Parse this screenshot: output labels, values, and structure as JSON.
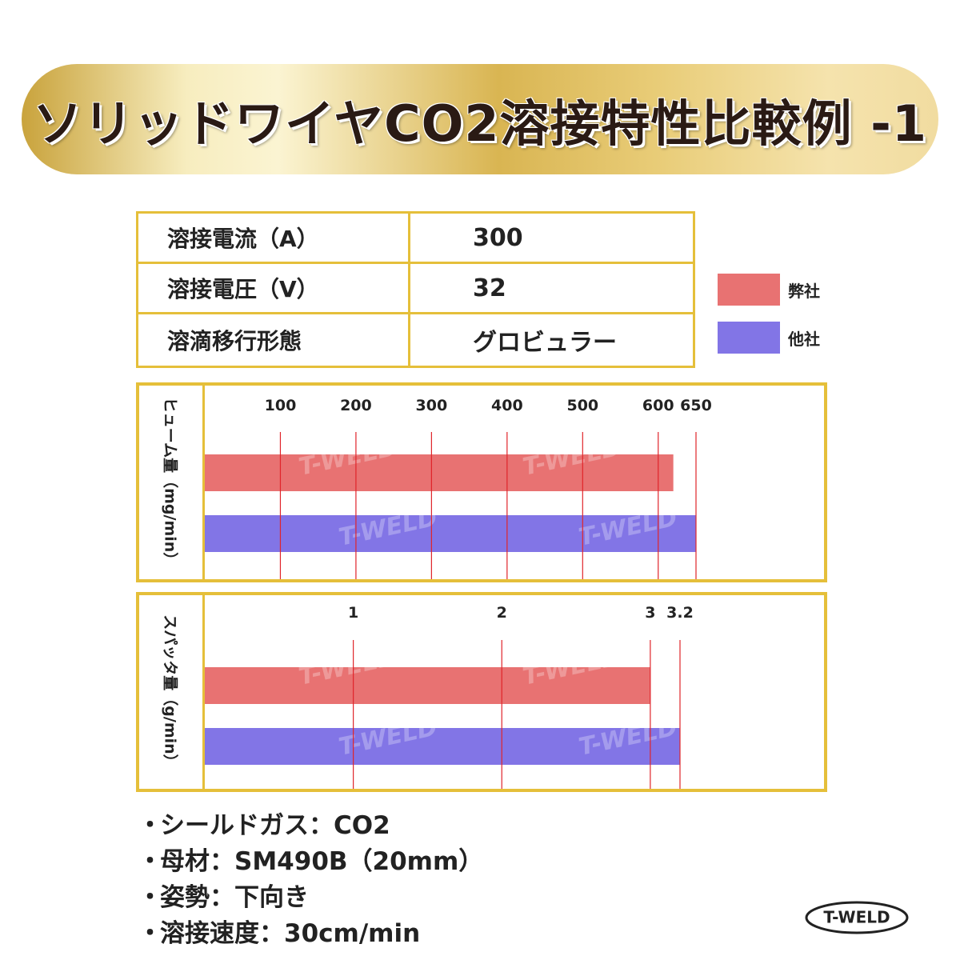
{
  "title": "ソリッドワイヤCO2溶接特性比較例 -1",
  "conditions": [
    {
      "label": "溶接電流（A）",
      "value": "300"
    },
    {
      "label": "溶接電圧（V）",
      "value": "32"
    },
    {
      "label": "溶滴移行形態",
      "value": "グロビュラー"
    }
  ],
  "legend": [
    {
      "label": "弊社",
      "color": "#e87272"
    },
    {
      "label": "他社",
      "color": "#8275e6"
    }
  ],
  "watermark": "T-WELD",
  "chart_data": [
    {
      "type": "bar",
      "orientation": "horizontal",
      "ylabel": "ヒューム量（mg/min）",
      "ticks": [
        100,
        200,
        300,
        400,
        500,
        600,
        650
      ],
      "xlim": [
        0,
        650
      ],
      "gridlines": true,
      "series": [
        {
          "name": "弊社",
          "value": 620,
          "color": "#e87272"
        },
        {
          "name": "他社",
          "value": 650,
          "color": "#8275e6"
        }
      ]
    },
    {
      "type": "bar",
      "orientation": "horizontal",
      "ylabel": "スパッタ量（g/min）",
      "ticks": [
        1,
        2,
        3,
        3.2
      ],
      "xlim": [
        0,
        3.2
      ],
      "gridlines": true,
      "series": [
        {
          "name": "弊社",
          "value": 3.0,
          "color": "#e87272"
        },
        {
          "name": "他社",
          "value": 3.2,
          "color": "#8275e6"
        }
      ]
    }
  ],
  "notes": [
    {
      "bullet": "・",
      "text": "シールドガス：CO2"
    },
    {
      "bullet": "・",
      "text": "母材：SM490B（20mm）"
    },
    {
      "bullet": "・",
      "text": "姿勢：下向き"
    },
    {
      "bullet": "・",
      "text": "溶接速度：30cm/min"
    }
  ],
  "logo": "T-WELD"
}
